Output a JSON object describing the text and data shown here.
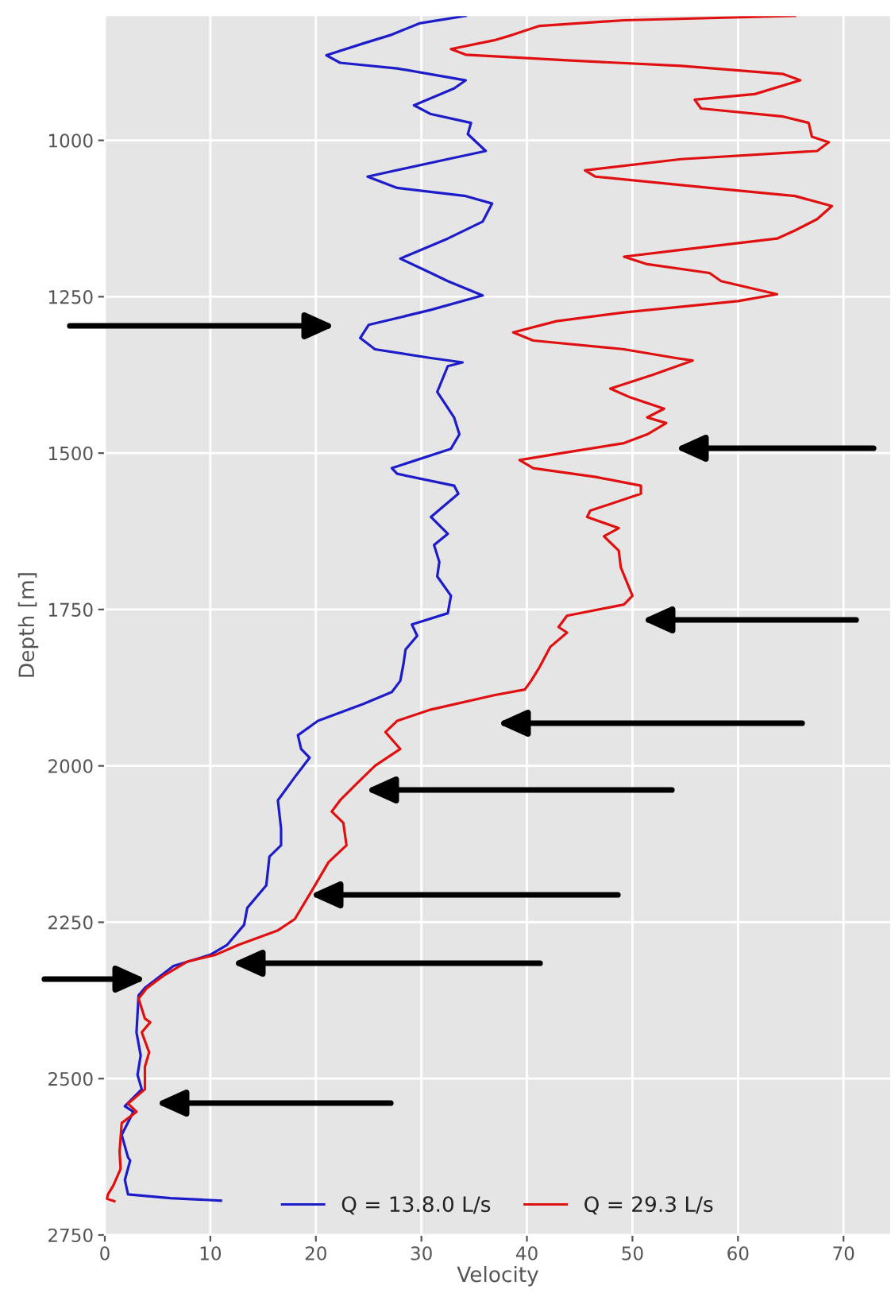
{
  "chart_data": {
    "type": "line",
    "xlabel": "Velocity",
    "ylabel": "Depth [m]",
    "xlim": [
      0,
      74.5
    ],
    "xticks": [
      0,
      10,
      20,
      30,
      40,
      50,
      60,
      70
    ],
    "ylim": [
      2750,
      800
    ],
    "yticks": [
      1000,
      1250,
      1500,
      1750,
      2000,
      2250,
      2500,
      2750
    ],
    "grid": true,
    "legend": "bottom",
    "series": [
      {
        "name": "Q = 13.8.0 L/s",
        "color": "#1c1cc8",
        "x": [
          34.2,
          29.8,
          27.2,
          24.5,
          21.0,
          22.3,
          27.7,
          34.2,
          33.1,
          29.3,
          30.9,
          34.7,
          34.4,
          36.1,
          32.5,
          24.9,
          27.7,
          34.2,
          36.7,
          35.8,
          32.5,
          28.0,
          30.9,
          32.5,
          35.8,
          30.9,
          25.0,
          24.2,
          25.6,
          30.9,
          33.9,
          32.5,
          31.5,
          33.1,
          33.6,
          32.8,
          27.2,
          27.7,
          33.1,
          33.5,
          30.9,
          32.5,
          31.2,
          31.7,
          31.5,
          32.8,
          32.5,
          29.1,
          29.6,
          28.5,
          28.3,
          28.0,
          27.2,
          24.5,
          20.2,
          18.3,
          18.6,
          19.4,
          18.0,
          16.4,
          16.7,
          16.7,
          15.6,
          15.3,
          13.5,
          13.2,
          11.6,
          10.0,
          6.5,
          3.8,
          3.2,
          3.0,
          3.4,
          3.1,
          3.5,
          1.9,
          2.7,
          1.6,
          2.2,
          2.4,
          1.9,
          2.2,
          6.2,
          11.0
        ],
        "values": [
          801,
          813,
          831,
          845,
          864,
          876,
          885,
          904,
          917,
          944,
          958,
          972,
          990,
          1017,
          1030,
          1058,
          1076,
          1089,
          1101,
          1130,
          1157,
          1189,
          1212,
          1225,
          1248,
          1271,
          1295,
          1316,
          1334,
          1348,
          1355,
          1361,
          1402,
          1443,
          1470,
          1493,
          1524,
          1533,
          1552,
          1565,
          1602,
          1629,
          1647,
          1674,
          1697,
          1728,
          1756,
          1774,
          1792,
          1814,
          1837,
          1864,
          1882,
          1901,
          1928,
          1951,
          1973,
          1987,
          2018,
          2055,
          2100,
          2127,
          2145,
          2191,
          2227,
          2254,
          2286,
          2302,
          2320,
          2355,
          2367,
          2426,
          2463,
          2494,
          2517,
          2544,
          2553,
          2590,
          2626,
          2631,
          2662,
          2685,
          2691,
          2695
        ]
      },
      {
        "name": "Q = 29.3 L/s",
        "color": "#e01010",
        "x": [
          65.4,
          49.2,
          41.2,
          38.7,
          36.9,
          32.8,
          34.2,
          43.8,
          54.6,
          64.3,
          65.9,
          61.6,
          55.9,
          56.5,
          64.3,
          66.7,
          67.0,
          68.6,
          67.5,
          54.6,
          45.5,
          46.5,
          57.3,
          65.4,
          68.9,
          67.5,
          65.4,
          63.7,
          54.6,
          49.2,
          51.4,
          57.3,
          58.4,
          63.7,
          60.0,
          49.2,
          42.8,
          38.7,
          40.6,
          49.2,
          54.1,
          55.7,
          51.9,
          47.9,
          49.8,
          53.0,
          51.4,
          53.2,
          51.4,
          49.2,
          43.3,
          39.3,
          40.6,
          46.5,
          50.8,
          50.8,
          46.0,
          45.7,
          48.7,
          47.3,
          48.7,
          48.9,
          50.0,
          49.2,
          43.8,
          43.0,
          43.8,
          42.2,
          41.2,
          40.4,
          39.8,
          36.9,
          30.9,
          27.7,
          26.6,
          28.0,
          25.6,
          23.9,
          22.3,
          21.5,
          22.6,
          22.9,
          21.2,
          19.6,
          18.0,
          16.4,
          12.7,
          10.5,
          7.8,
          5.7,
          4.0,
          3.2,
          3.8,
          4.3,
          3.5,
          4.2,
          3.8,
          3.8,
          2.2,
          3.0,
          1.6,
          1.4,
          1.5,
          0.8,
          0.3,
          0.2,
          0.9
        ],
        "values": [
          801,
          808,
          817,
          831,
          840,
          854,
          863,
          872,
          881,
          894,
          904,
          926,
          935,
          949,
          962,
          972,
          994,
          1003,
          1017,
          1030,
          1048,
          1058,
          1076,
          1089,
          1105,
          1126,
          1144,
          1157,
          1175,
          1186,
          1198,
          1212,
          1225,
          1246,
          1257,
          1275,
          1289,
          1307,
          1320,
          1334,
          1348,
          1352,
          1375,
          1397,
          1411,
          1429,
          1443,
          1452,
          1470,
          1484,
          1500,
          1511,
          1524,
          1538,
          1552,
          1565,
          1592,
          1602,
          1620,
          1633,
          1656,
          1683,
          1728,
          1742,
          1760,
          1778,
          1787,
          1810,
          1842,
          1864,
          1878,
          1887,
          1910,
          1928,
          1946,
          1973,
          2000,
          2028,
          2055,
          2073,
          2091,
          2127,
          2154,
          2200,
          2245,
          2263,
          2286,
          2302,
          2313,
          2334,
          2355,
          2372,
          2404,
          2410,
          2426,
          2458,
          2481,
          2517,
          2540,
          2553,
          2571,
          2617,
          2644,
          2671,
          2685,
          2692,
          2696
        ]
      }
    ]
  }
}
